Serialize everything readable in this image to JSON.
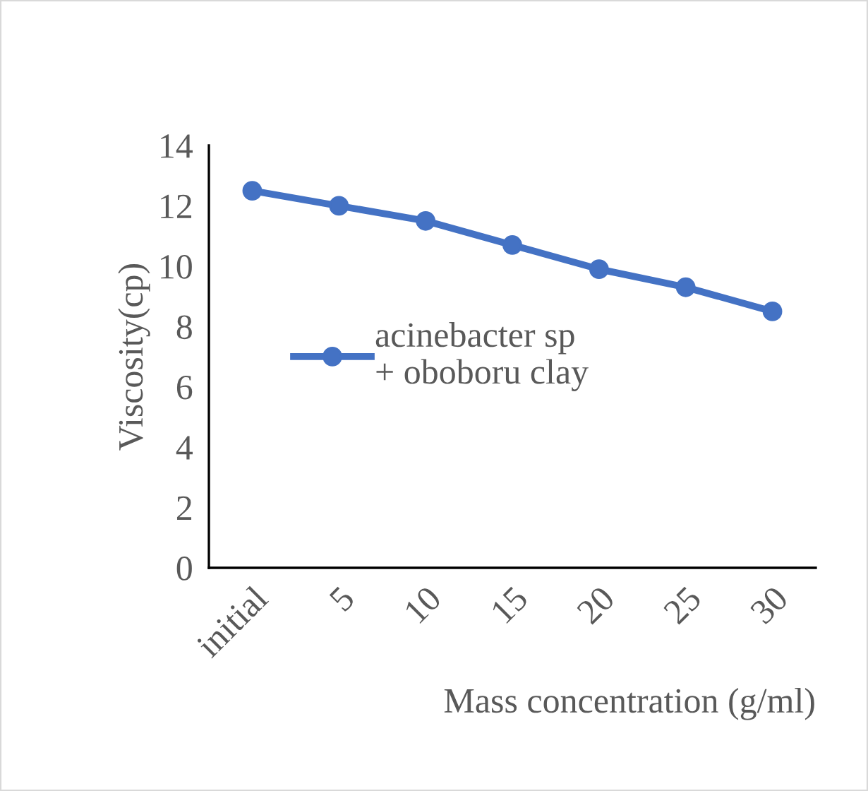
{
  "chart_data": {
    "type": "line",
    "xlabel": "Mass concentration (g/ml)",
    "ylabel": "Viscosity(cp)",
    "categories": [
      "initial",
      "5",
      "10",
      "15",
      "20",
      "25",
      "30"
    ],
    "series": [
      {
        "name": "acinebacter sp + oboboru clay",
        "color": "#4472c4",
        "values": [
          12.5,
          12.0,
          11.5,
          10.7,
          9.9,
          9.3,
          8.5
        ]
      }
    ],
    "ylim": [
      0,
      14
    ],
    "yticks": [
      0,
      2,
      4,
      6,
      8,
      10,
      12,
      14
    ],
    "grid": false,
    "legend": "left",
    "marker": "circle",
    "line_style": "solid"
  }
}
